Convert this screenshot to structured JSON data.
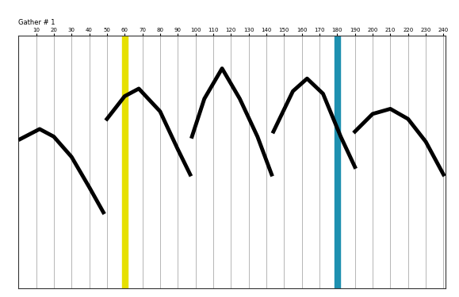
{
  "chart_data": {
    "type": "wiggle",
    "title": "Gather # 1",
    "xlim": [
      0,
      241
    ],
    "xticks": [
      10,
      20,
      30,
      40,
      50,
      60,
      70,
      80,
      90,
      100,
      110,
      120,
      130,
      140,
      150,
      160,
      170,
      180,
      190,
      200,
      210,
      220,
      230,
      240
    ],
    "ylim": [
      0,
      100
    ],
    "tick_labels": "x",
    "grid": true,
    "color": "#000000",
    "line_style": "solid",
    "events": [
      {
        "x": [
          1,
          12,
          20,
          30,
          40,
          48
        ],
        "values": [
          41,
          37,
          40,
          48,
          60,
          70
        ]
      },
      {
        "x": [
          50,
          60,
          68,
          80,
          90,
          97
        ],
        "values": [
          33,
          24,
          21,
          30,
          45,
          55
        ]
      },
      {
        "x": [
          98,
          105,
          115,
          125,
          135,
          143
        ],
        "values": [
          40,
          25,
          13,
          25,
          40,
          55
        ]
      },
      {
        "x": [
          144,
          155,
          163,
          172,
          182,
          190
        ],
        "values": [
          38,
          22,
          17,
          23,
          40,
          52
        ]
      },
      {
        "x": [
          190,
          200,
          210,
          220,
          230,
          240
        ],
        "values": [
          38,
          31,
          29,
          33,
          42,
          55
        ]
      }
    ],
    "highlights": [
      {
        "trace": 60,
        "color": "#e6e000"
      },
      {
        "trace": 180,
        "color": "#1e90b0"
      }
    ]
  }
}
